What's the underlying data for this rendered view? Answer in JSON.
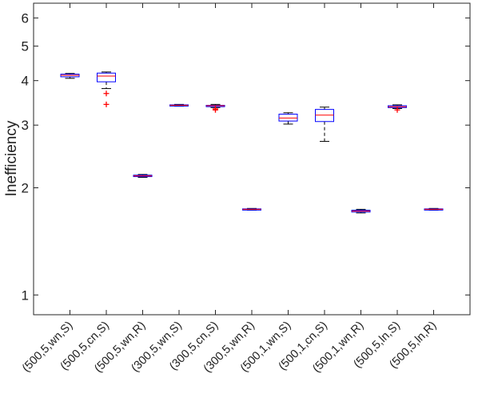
{
  "chart_data": {
    "type": "boxplot",
    "ylabel": "Inefficiency",
    "yscale": "log",
    "ylim": [
      0.88,
      6.6
    ],
    "yticks": [
      1,
      2,
      3,
      4,
      5,
      6
    ],
    "ytick_labels": [
      "1",
      "2",
      "3",
      "4",
      "5",
      "6"
    ],
    "categories": [
      "(500,5,wn,S)",
      "(500,5,cn,S)",
      "(500,5,wn,R)",
      "(300,5,wn,S)",
      "(300,5,cn,S)",
      "(300,5,wn,R)",
      "(500,1,wn,S)",
      "(500,1,cn,S)",
      "(500,1,wn,R)",
      "(500,5,ln,S)",
      "(500,5,ln,R)"
    ],
    "boxes": [
      {
        "q1": 4.1,
        "median": 4.14,
        "q3": 4.17,
        "whisker_low": 4.06,
        "whisker_high": 4.19,
        "outliers": []
      },
      {
        "q1": 3.97,
        "median": 4.12,
        "q3": 4.2,
        "whisker_low": 3.8,
        "whisker_high": 4.23,
        "outliers": [
          3.68,
          3.43
        ]
      },
      {
        "q1": 2.15,
        "median": 2.16,
        "q3": 2.17,
        "whisker_low": 2.14,
        "whisker_high": 2.18,
        "outliers": []
      },
      {
        "q1": 3.4,
        "median": 3.41,
        "q3": 3.42,
        "whisker_low": 3.39,
        "whisker_high": 3.43,
        "outliers": []
      },
      {
        "q1": 3.38,
        "median": 3.4,
        "q3": 3.41,
        "whisker_low": 3.36,
        "whisker_high": 3.43,
        "outliers": [
          3.33,
          3.31
        ]
      },
      {
        "q1": 1.735,
        "median": 1.74,
        "q3": 1.745,
        "whisker_low": 1.73,
        "whisker_high": 1.75,
        "outliers": []
      },
      {
        "q1": 3.08,
        "median": 3.14,
        "q3": 3.22,
        "whisker_low": 3.02,
        "whisker_high": 3.25,
        "outliers": []
      },
      {
        "q1": 3.07,
        "median": 3.2,
        "q3": 3.32,
        "whisker_low": 2.7,
        "whisker_high": 3.37,
        "outliers": []
      },
      {
        "q1": 1.71,
        "median": 1.72,
        "q3": 1.73,
        "whisker_low": 1.7,
        "whisker_high": 1.74,
        "outliers": []
      },
      {
        "q1": 3.36,
        "median": 3.38,
        "q3": 3.4,
        "whisker_low": 3.34,
        "whisker_high": 3.42,
        "outliers": [
          3.31
        ]
      },
      {
        "q1": 1.735,
        "median": 1.74,
        "q3": 1.745,
        "whisker_low": 1.73,
        "whisker_high": 1.75,
        "outliers": []
      }
    ],
    "colors": {
      "box": "#0000ff",
      "median": "#ff0000",
      "whisker": "#000000",
      "outlier": "#ff0000",
      "axes": "#262626"
    },
    "grid": false,
    "legend": "none"
  }
}
